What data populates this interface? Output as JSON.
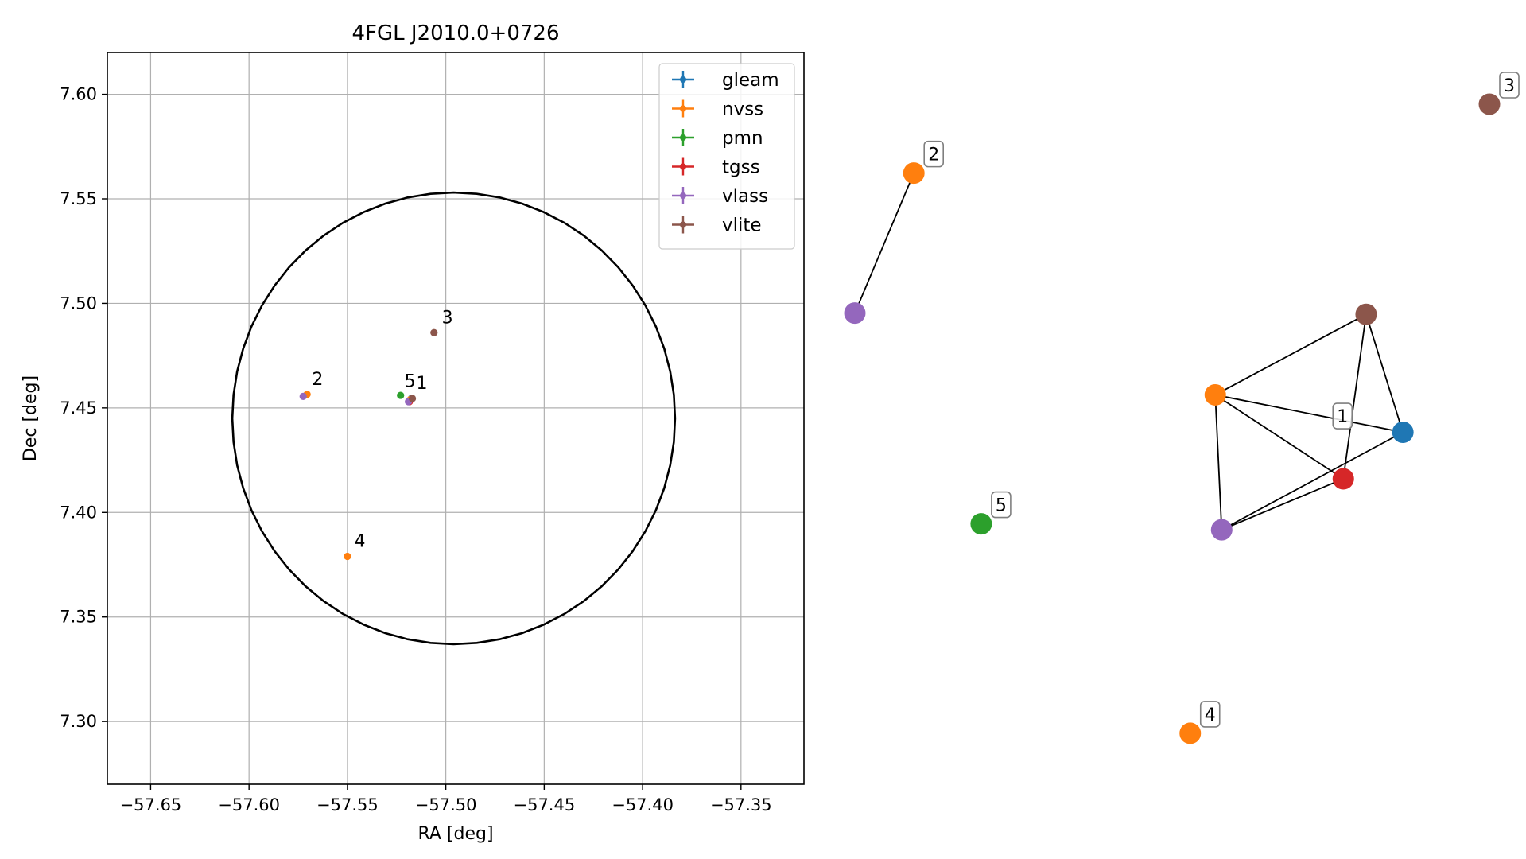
{
  "chart_data": [
    {
      "type": "scatter",
      "title": "4FGL J2010.0+0726",
      "xlabel": "RA [deg]",
      "ylabel": "Dec [deg]",
      "xlim": [
        -57.672,
        -57.318
      ],
      "ylim": [
        7.27,
        7.62
      ],
      "xticks": [
        -57.65,
        -57.6,
        -57.55,
        -57.5,
        -57.45,
        -57.4,
        -57.35
      ],
      "xtick_labels": [
        "−57.65",
        "−57.60",
        "−57.55",
        "−57.50",
        "−57.45",
        "−57.40",
        "−57.35"
      ],
      "yticks": [
        7.3,
        7.35,
        7.4,
        7.45,
        7.5,
        7.55,
        7.6
      ],
      "ytick_labels": [
        "7.30",
        "7.35",
        "7.40",
        "7.45",
        "7.50",
        "7.55",
        "7.60"
      ],
      "grid": true,
      "legend_position": "top-right",
      "series": [
        {
          "name": "gleam",
          "color": "#1f77b4",
          "points": [
            {
              "x": -57.5175,
              "y": 7.4545
            }
          ]
        },
        {
          "name": "nvss",
          "color": "#ff7f0e",
          "points": [
            {
              "x": -57.5705,
              "y": 7.4565
            },
            {
              "x": -57.55,
              "y": 7.379
            },
            {
              "x": -57.518,
              "y": 7.454
            }
          ]
        },
        {
          "name": "pmn",
          "color": "#2ca02c",
          "points": [
            {
              "x": -57.523,
              "y": 7.456
            }
          ]
        },
        {
          "name": "tgss",
          "color": "#d62728",
          "points": [
            {
              "x": -57.5185,
              "y": 7.453
            }
          ]
        },
        {
          "name": "vlass",
          "color": "#9467bd",
          "points": [
            {
              "x": -57.5725,
              "y": 7.4555
            },
            {
              "x": -57.519,
              "y": 7.453
            }
          ]
        },
        {
          "name": "vlite",
          "color": "#8c564b",
          "points": [
            {
              "x": -57.506,
              "y": 7.486
            },
            {
              "x": -57.517,
              "y": 7.4545
            }
          ]
        }
      ],
      "annotations": [
        {
          "text": "1",
          "x": -57.515,
          "y": 7.459
        },
        {
          "text": "2",
          "x": -57.568,
          "y": 7.461
        },
        {
          "text": "3",
          "x": -57.502,
          "y": 7.4905
        },
        {
          "text": "4",
          "x": -57.5465,
          "y": 7.3835
        },
        {
          "text": "5",
          "x": -57.521,
          "y": 7.46
        }
      ],
      "circle": {
        "center_x": -57.496,
        "center_y": 7.445,
        "radius_x": 0.1125,
        "radius_y": 0.108,
        "color": "#000000"
      }
    },
    {
      "type": "network",
      "nodes": [
        {
          "id": "g1",
          "color": "#1f77b4",
          "x": 0.9845,
          "y": 0.5215
        },
        {
          "id": "n1",
          "color": "#ff7f0e",
          "x": 0.6475,
          "y": 0.462
        },
        {
          "id": "t1",
          "color": "#d62728",
          "x": 0.8775,
          "y": 0.5955
        },
        {
          "id": "v1",
          "color": "#9467bd",
          "x": 0.659,
          "y": 0.6765
        },
        {
          "id": "l1",
          "color": "#8c564b",
          "x": 0.9185,
          "y": 0.334
        },
        {
          "id": "n2",
          "color": "#ff7f0e",
          "x": 0.106,
          "y": 0.1095
        },
        {
          "id": "v2",
          "color": "#9467bd",
          "x": 0.0,
          "y": 0.332
        },
        {
          "id": "l3",
          "color": "#8c564b",
          "x": 1.14,
          "y": 0.0
        },
        {
          "id": "p5",
          "color": "#2ca02c",
          "x": 0.227,
          "y": 0.667
        },
        {
          "id": "n4",
          "color": "#ff7f0e",
          "x": 0.6025,
          "y": 0.9999
        }
      ],
      "edges": [
        [
          "n1",
          "l1"
        ],
        [
          "n1",
          "g1"
        ],
        [
          "n1",
          "t1"
        ],
        [
          "n1",
          "v1"
        ],
        [
          "l1",
          "g1"
        ],
        [
          "l1",
          "t1"
        ],
        [
          "v1",
          "g1"
        ],
        [
          "v1",
          "t1"
        ],
        [
          "n2",
          "v2"
        ]
      ],
      "labels": [
        {
          "text": "1",
          "node": "t1"
        },
        {
          "text": "2",
          "node": "n2"
        },
        {
          "text": "3",
          "node": "l3"
        },
        {
          "text": "4",
          "node": "n4"
        },
        {
          "text": "5",
          "node": "p5"
        }
      ]
    }
  ]
}
